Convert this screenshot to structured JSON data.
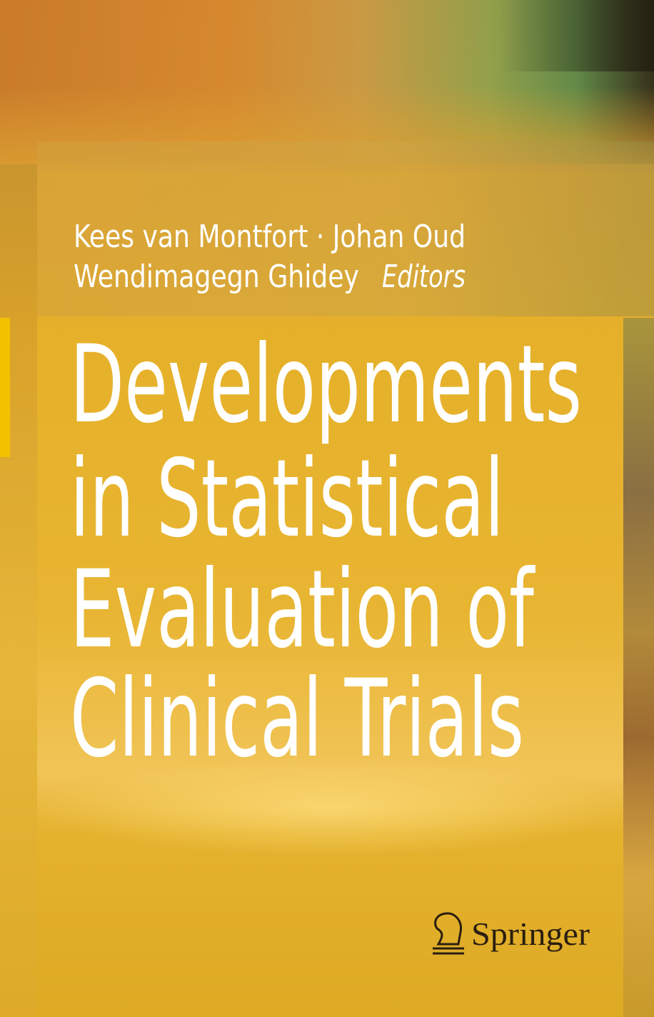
{
  "cover": {
    "editors": [
      "Kees van Montfort · Johan Oud",
      "Wendimagegn Ghidey"
    ],
    "role": "Editors",
    "title_lines": [
      "Developments",
      "in Statistical",
      "Evaluation of",
      "Clinical Trials"
    ],
    "publisher": "Springer"
  }
}
